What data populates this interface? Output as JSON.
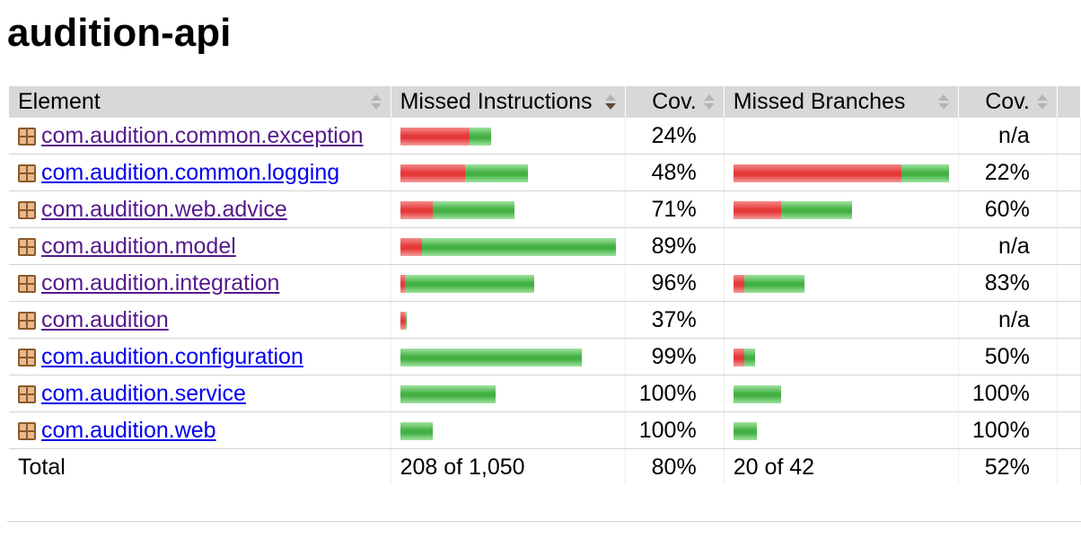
{
  "title": "audition-api",
  "headers": {
    "element": "Element",
    "missed_instructions": "Missed Instructions",
    "cov_instructions": "Cov.",
    "missed_branches": "Missed Branches",
    "cov_branches": "Cov."
  },
  "rows": [
    {
      "name": "com.audition.common.exception",
      "visited": true,
      "instr": {
        "missed": 0.32,
        "covered": 0.1
      },
      "instr_cov": "24%",
      "br": null,
      "br_cov": "n/a"
    },
    {
      "name": "com.audition.common.logging",
      "visited": false,
      "instr": {
        "missed": 0.3,
        "covered": 0.29
      },
      "instr_cov": "48%",
      "br": {
        "missed": 0.78,
        "covered": 0.22
      },
      "br_cov": "22%"
    },
    {
      "name": "com.audition.web.advice",
      "visited": true,
      "instr": {
        "missed": 0.15,
        "covered": 0.38
      },
      "instr_cov": "71%",
      "br": {
        "missed": 0.22,
        "covered": 0.33
      },
      "br_cov": "60%"
    },
    {
      "name": "com.audition.model",
      "visited": true,
      "instr": {
        "missed": 0.1,
        "covered": 0.9
      },
      "instr_cov": "89%",
      "br": null,
      "br_cov": "n/a"
    },
    {
      "name": "com.audition.integration",
      "visited": true,
      "instr": {
        "missed": 0.02,
        "covered": 0.6
      },
      "instr_cov": "96%",
      "br": {
        "missed": 0.05,
        "covered": 0.28
      },
      "br_cov": "83%"
    },
    {
      "name": "com.audition",
      "visited": true,
      "instr": {
        "missed": 0.02,
        "covered": 0.01
      },
      "instr_cov": "37%",
      "br": null,
      "br_cov": "n/a"
    },
    {
      "name": "com.audition.configuration",
      "visited": false,
      "instr": {
        "missed": 0.0,
        "covered": 0.84
      },
      "instr_cov": "99%",
      "br": {
        "missed": 0.05,
        "covered": 0.05
      },
      "br_cov": "50%"
    },
    {
      "name": "com.audition.service",
      "visited": false,
      "instr": {
        "missed": 0.0,
        "covered": 0.44
      },
      "instr_cov": "100%",
      "br": {
        "missed": 0.0,
        "covered": 0.22
      },
      "br_cov": "100%"
    },
    {
      "name": "com.audition.web",
      "visited": false,
      "instr": {
        "missed": 0.0,
        "covered": 0.15
      },
      "instr_cov": "100%",
      "br": {
        "missed": 0.0,
        "covered": 0.11
      },
      "br_cov": "100%"
    }
  ],
  "total": {
    "label": "Total",
    "instr": "208 of 1,050",
    "instr_cov": "80%",
    "br": "20 of 42",
    "br_cov": "52%"
  }
}
